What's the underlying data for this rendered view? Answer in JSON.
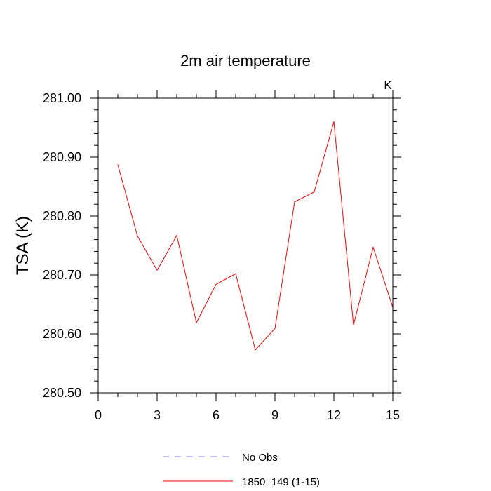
{
  "chart_data": {
    "type": "line",
    "title": "2m air temperature",
    "ylabel": "TSA  (K)",
    "xlabel": "",
    "unit_label": "K",
    "xlim": [
      0,
      15
    ],
    "ylim": [
      280.5,
      281.0
    ],
    "xticks": [
      0,
      3,
      6,
      9,
      12,
      15
    ],
    "xtick_labels": [
      "0",
      "3",
      "6",
      "9",
      "12",
      "15"
    ],
    "yticks": [
      280.5,
      280.6,
      280.7,
      280.8,
      280.9,
      281.0
    ],
    "ytick_labels": [
      "280.50",
      "280.60",
      "280.70",
      "280.80",
      "280.90",
      "281.00"
    ],
    "grid": false,
    "legend_position": "bottom-center",
    "series": [
      {
        "name": "1850_149 (1-15)",
        "color": "#ff0000",
        "dash": "solid",
        "x": [
          1,
          2,
          3,
          4,
          5,
          6,
          7,
          8,
          9,
          10,
          11,
          12,
          13,
          14,
          15
        ],
        "y": [
          280.887,
          280.766,
          280.708,
          280.767,
          280.619,
          280.684,
          280.702,
          280.573,
          280.609,
          280.824,
          280.841,
          280.96,
          280.615,
          280.747,
          280.645
        ]
      }
    ],
    "legend": [
      {
        "label": "No Obs",
        "color": "#8080ff",
        "dash": "dashed"
      },
      {
        "label": "1850_149 (1-15)",
        "color": "#ff0000",
        "dash": "solid"
      }
    ]
  }
}
